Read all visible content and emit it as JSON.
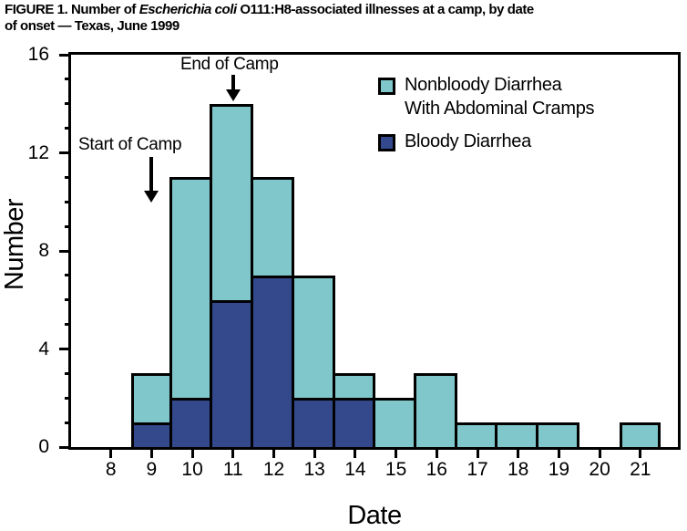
{
  "figure": {
    "title_prefix": "FIGURE 1. Number of ",
    "title_italic": "Escherichia coli",
    "title_suffix_line1": " O111:H8-associated illnesses at a camp, by date",
    "title_line2": "of onset — Texas, June 1999"
  },
  "chart_data": {
    "type": "bar",
    "stacked": true,
    "title": "FIGURE 1. Number of Escherichia coli O111:H8-associated illnesses at a camp, by date of onset — Texas, June 1999",
    "xlabel": "Date",
    "ylabel": "Number",
    "ylim": [
      0,
      16
    ],
    "y_major_ticks": [
      0,
      4,
      8,
      12,
      16
    ],
    "y_minor_step": 1,
    "grid": false,
    "categories": [
      8,
      9,
      10,
      11,
      12,
      13,
      14,
      15,
      16,
      17,
      18,
      19,
      20,
      21
    ],
    "series": [
      {
        "name": "Bloody Diarrhea",
        "stack_position": "bottom",
        "color": "#33498c",
        "values": [
          0,
          1,
          2,
          6,
          7,
          2,
          2,
          0,
          0,
          0,
          0,
          0,
          0,
          0
        ]
      },
      {
        "name": "Nonbloody Diarrhea With Abdominal Cramps",
        "stack_position": "top",
        "color": "#7fc7ca",
        "values": [
          0,
          2,
          9,
          8,
          4,
          5,
          1,
          2,
          3,
          1,
          1,
          1,
          0,
          1
        ]
      }
    ],
    "totals": [
      0,
      3,
      11,
      14,
      11,
      7,
      3,
      2,
      3,
      1,
      1,
      1,
      0,
      1
    ],
    "legend": {
      "position": "top-right",
      "items": [
        {
          "label_line1": "Nonbloody Diarrhea",
          "label_line2": "With Abdominal Cramps",
          "color": "#7fc7ca"
        },
        {
          "label_line1": "Bloody Diarrhea",
          "label_line2": "",
          "color": "#33498c"
        }
      ]
    },
    "annotations": [
      {
        "text": "Start of Camp",
        "category": 9
      },
      {
        "text": "End of Camp",
        "category": 11
      }
    ],
    "colors": {
      "axis": "#000000",
      "background": "#ffffff"
    }
  }
}
